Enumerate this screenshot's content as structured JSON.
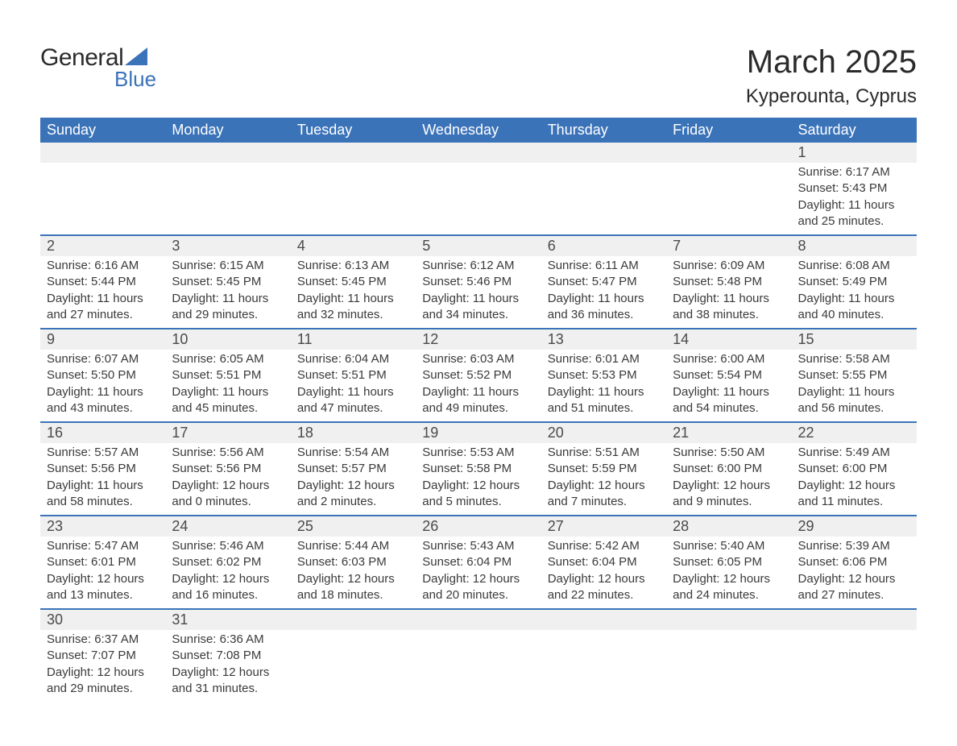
{
  "logo": {
    "text_general": "General",
    "text_blue": "Blue",
    "triangle_color": "#3b73b9"
  },
  "header": {
    "month_title": "March 2025",
    "location": "Kyperounta, Cyprus"
  },
  "colors": {
    "header_bg": "#3b73b9",
    "header_text": "#ffffff",
    "day_number_bg": "#f0f0f0",
    "border_color": "#3b73b9",
    "text_color": "#3a3a3a"
  },
  "days_of_week": [
    "Sunday",
    "Monday",
    "Tuesday",
    "Wednesday",
    "Thursday",
    "Friday",
    "Saturday"
  ],
  "weeks": [
    {
      "days": [
        {
          "empty": true
        },
        {
          "empty": true
        },
        {
          "empty": true
        },
        {
          "empty": true
        },
        {
          "empty": true
        },
        {
          "empty": true
        },
        {
          "num": "1",
          "sunrise": "Sunrise: 6:17 AM",
          "sunset": "Sunset: 5:43 PM",
          "daylight1": "Daylight: 11 hours",
          "daylight2": "and 25 minutes."
        }
      ]
    },
    {
      "days": [
        {
          "num": "2",
          "sunrise": "Sunrise: 6:16 AM",
          "sunset": "Sunset: 5:44 PM",
          "daylight1": "Daylight: 11 hours",
          "daylight2": "and 27 minutes."
        },
        {
          "num": "3",
          "sunrise": "Sunrise: 6:15 AM",
          "sunset": "Sunset: 5:45 PM",
          "daylight1": "Daylight: 11 hours",
          "daylight2": "and 29 minutes."
        },
        {
          "num": "4",
          "sunrise": "Sunrise: 6:13 AM",
          "sunset": "Sunset: 5:45 PM",
          "daylight1": "Daylight: 11 hours",
          "daylight2": "and 32 minutes."
        },
        {
          "num": "5",
          "sunrise": "Sunrise: 6:12 AM",
          "sunset": "Sunset: 5:46 PM",
          "daylight1": "Daylight: 11 hours",
          "daylight2": "and 34 minutes."
        },
        {
          "num": "6",
          "sunrise": "Sunrise: 6:11 AM",
          "sunset": "Sunset: 5:47 PM",
          "daylight1": "Daylight: 11 hours",
          "daylight2": "and 36 minutes."
        },
        {
          "num": "7",
          "sunrise": "Sunrise: 6:09 AM",
          "sunset": "Sunset: 5:48 PM",
          "daylight1": "Daylight: 11 hours",
          "daylight2": "and 38 minutes."
        },
        {
          "num": "8",
          "sunrise": "Sunrise: 6:08 AM",
          "sunset": "Sunset: 5:49 PM",
          "daylight1": "Daylight: 11 hours",
          "daylight2": "and 40 minutes."
        }
      ]
    },
    {
      "days": [
        {
          "num": "9",
          "sunrise": "Sunrise: 6:07 AM",
          "sunset": "Sunset: 5:50 PM",
          "daylight1": "Daylight: 11 hours",
          "daylight2": "and 43 minutes."
        },
        {
          "num": "10",
          "sunrise": "Sunrise: 6:05 AM",
          "sunset": "Sunset: 5:51 PM",
          "daylight1": "Daylight: 11 hours",
          "daylight2": "and 45 minutes."
        },
        {
          "num": "11",
          "sunrise": "Sunrise: 6:04 AM",
          "sunset": "Sunset: 5:51 PM",
          "daylight1": "Daylight: 11 hours",
          "daylight2": "and 47 minutes."
        },
        {
          "num": "12",
          "sunrise": "Sunrise: 6:03 AM",
          "sunset": "Sunset: 5:52 PM",
          "daylight1": "Daylight: 11 hours",
          "daylight2": "and 49 minutes."
        },
        {
          "num": "13",
          "sunrise": "Sunrise: 6:01 AM",
          "sunset": "Sunset: 5:53 PM",
          "daylight1": "Daylight: 11 hours",
          "daylight2": "and 51 minutes."
        },
        {
          "num": "14",
          "sunrise": "Sunrise: 6:00 AM",
          "sunset": "Sunset: 5:54 PM",
          "daylight1": "Daylight: 11 hours",
          "daylight2": "and 54 minutes."
        },
        {
          "num": "15",
          "sunrise": "Sunrise: 5:58 AM",
          "sunset": "Sunset: 5:55 PM",
          "daylight1": "Daylight: 11 hours",
          "daylight2": "and 56 minutes."
        }
      ]
    },
    {
      "days": [
        {
          "num": "16",
          "sunrise": "Sunrise: 5:57 AM",
          "sunset": "Sunset: 5:56 PM",
          "daylight1": "Daylight: 11 hours",
          "daylight2": "and 58 minutes."
        },
        {
          "num": "17",
          "sunrise": "Sunrise: 5:56 AM",
          "sunset": "Sunset: 5:56 PM",
          "daylight1": "Daylight: 12 hours",
          "daylight2": "and 0 minutes."
        },
        {
          "num": "18",
          "sunrise": "Sunrise: 5:54 AM",
          "sunset": "Sunset: 5:57 PM",
          "daylight1": "Daylight: 12 hours",
          "daylight2": "and 2 minutes."
        },
        {
          "num": "19",
          "sunrise": "Sunrise: 5:53 AM",
          "sunset": "Sunset: 5:58 PM",
          "daylight1": "Daylight: 12 hours",
          "daylight2": "and 5 minutes."
        },
        {
          "num": "20",
          "sunrise": "Sunrise: 5:51 AM",
          "sunset": "Sunset: 5:59 PM",
          "daylight1": "Daylight: 12 hours",
          "daylight2": "and 7 minutes."
        },
        {
          "num": "21",
          "sunrise": "Sunrise: 5:50 AM",
          "sunset": "Sunset: 6:00 PM",
          "daylight1": "Daylight: 12 hours",
          "daylight2": "and 9 minutes."
        },
        {
          "num": "22",
          "sunrise": "Sunrise: 5:49 AM",
          "sunset": "Sunset: 6:00 PM",
          "daylight1": "Daylight: 12 hours",
          "daylight2": "and 11 minutes."
        }
      ]
    },
    {
      "days": [
        {
          "num": "23",
          "sunrise": "Sunrise: 5:47 AM",
          "sunset": "Sunset: 6:01 PM",
          "daylight1": "Daylight: 12 hours",
          "daylight2": "and 13 minutes."
        },
        {
          "num": "24",
          "sunrise": "Sunrise: 5:46 AM",
          "sunset": "Sunset: 6:02 PM",
          "daylight1": "Daylight: 12 hours",
          "daylight2": "and 16 minutes."
        },
        {
          "num": "25",
          "sunrise": "Sunrise: 5:44 AM",
          "sunset": "Sunset: 6:03 PM",
          "daylight1": "Daylight: 12 hours",
          "daylight2": "and 18 minutes."
        },
        {
          "num": "26",
          "sunrise": "Sunrise: 5:43 AM",
          "sunset": "Sunset: 6:04 PM",
          "daylight1": "Daylight: 12 hours",
          "daylight2": "and 20 minutes."
        },
        {
          "num": "27",
          "sunrise": "Sunrise: 5:42 AM",
          "sunset": "Sunset: 6:04 PM",
          "daylight1": "Daylight: 12 hours",
          "daylight2": "and 22 minutes."
        },
        {
          "num": "28",
          "sunrise": "Sunrise: 5:40 AM",
          "sunset": "Sunset: 6:05 PM",
          "daylight1": "Daylight: 12 hours",
          "daylight2": "and 24 minutes."
        },
        {
          "num": "29",
          "sunrise": "Sunrise: 5:39 AM",
          "sunset": "Sunset: 6:06 PM",
          "daylight1": "Daylight: 12 hours",
          "daylight2": "and 27 minutes."
        }
      ]
    },
    {
      "days": [
        {
          "num": "30",
          "sunrise": "Sunrise: 6:37 AM",
          "sunset": "Sunset: 7:07 PM",
          "daylight1": "Daylight: 12 hours",
          "daylight2": "and 29 minutes."
        },
        {
          "num": "31",
          "sunrise": "Sunrise: 6:36 AM",
          "sunset": "Sunset: 7:08 PM",
          "daylight1": "Daylight: 12 hours",
          "daylight2": "and 31 minutes."
        },
        {
          "empty": true
        },
        {
          "empty": true
        },
        {
          "empty": true
        },
        {
          "empty": true
        },
        {
          "empty": true
        }
      ]
    }
  ]
}
